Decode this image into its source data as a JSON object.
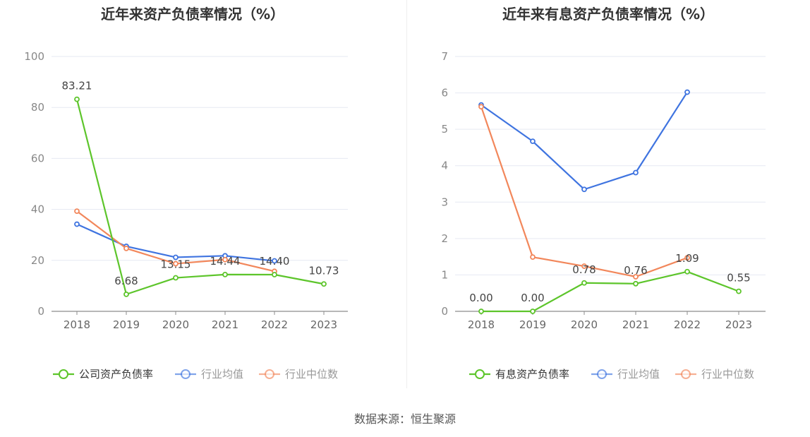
{
  "source": "数据来源：恒生聚源",
  "chart_data": [
    {
      "type": "line",
      "title": "近年来资产负债率情况（%）",
      "categories": [
        "2018",
        "2019",
        "2020",
        "2021",
        "2022",
        "2023"
      ],
      "ylim": [
        0,
        100
      ],
      "yticks": [
        "0",
        "20",
        "40",
        "60",
        "80",
        "100"
      ],
      "grid": true,
      "legend_position": "bottom",
      "series": [
        {
          "name": "公司资产负债率",
          "color": "#5dc52b",
          "values": [
            83.21,
            6.68,
            13.15,
            14.44,
            14.4,
            10.73
          ],
          "labels": [
            "83.21",
            "6.68",
            "13.15",
            "14.44",
            "14.40",
            "10.73"
          ]
        },
        {
          "name": "行业均值",
          "color": "#3f74e0",
          "values": [
            34.2,
            25.5,
            21.2,
            21.8,
            19.8,
            null
          ]
        },
        {
          "name": "行业中位数",
          "color": "#f2875b",
          "values": [
            39.3,
            24.7,
            18.7,
            20.3,
            15.7,
            null
          ]
        }
      ]
    },
    {
      "type": "line",
      "title": "近年来有息资产负债率情况（%）",
      "categories": [
        "2018",
        "2019",
        "2020",
        "2021",
        "2022",
        "2023"
      ],
      "ylim": [
        0,
        7
      ],
      "yticks": [
        "0",
        "1",
        "2",
        "3",
        "4",
        "5",
        "6",
        "7"
      ],
      "grid": true,
      "legend_position": "bottom",
      "series": [
        {
          "name": "有息资产负债率",
          "color": "#5dc52b",
          "values": [
            0.0,
            0.0,
            0.78,
            0.76,
            1.09,
            0.55
          ],
          "labels": [
            "0.00",
            "0.00",
            "0.78",
            "0.76",
            "1.09",
            "0.55"
          ]
        },
        {
          "name": "行业均值",
          "color": "#3f74e0",
          "values": [
            5.67,
            4.67,
            3.35,
            3.81,
            6.02,
            null
          ]
        },
        {
          "name": "行业中位数",
          "color": "#f2875b",
          "values": [
            5.62,
            1.49,
            1.24,
            0.95,
            1.47,
            null
          ]
        }
      ]
    }
  ]
}
